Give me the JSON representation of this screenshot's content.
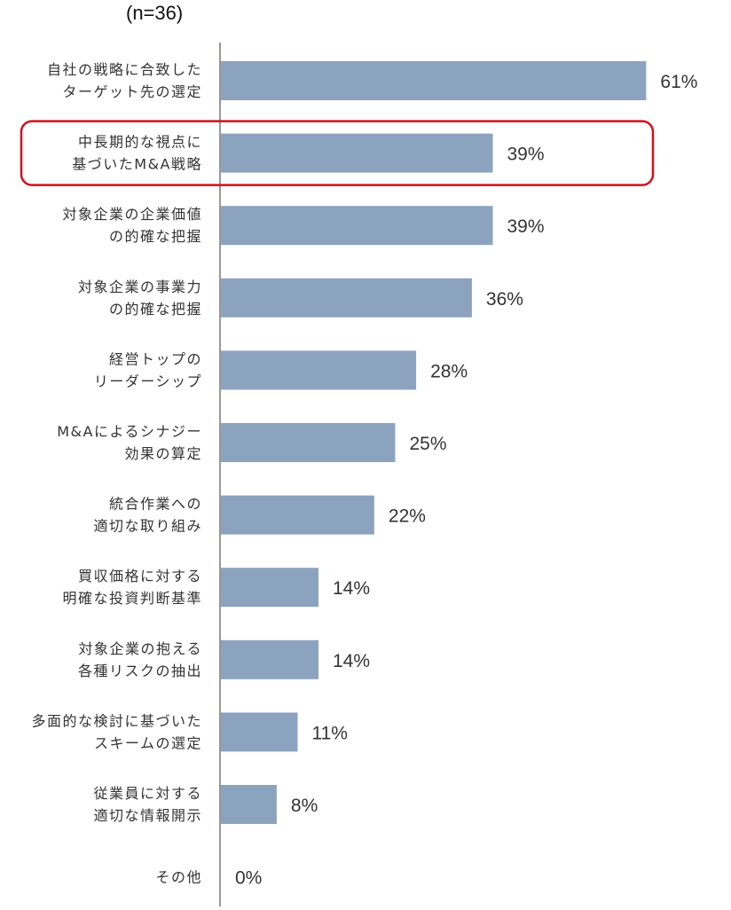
{
  "chart_data": {
    "type": "bar",
    "orientation": "horizontal",
    "subtitle": "(n=36)",
    "categories": [
      [
        "自社の戦略に合致した",
        "ターゲット先の選定"
      ],
      [
        "中長期的な視点に",
        "基づいたM&A戦略"
      ],
      [
        "対象企業の企業価値",
        "の的確な把握"
      ],
      [
        "対象企業の事業力",
        "の的確な把握"
      ],
      [
        "経営トップの",
        "リーダーシップ"
      ],
      [
        "M&Aによるシナジー",
        "効果の算定"
      ],
      [
        "統合作業への",
        "適切な取り組み"
      ],
      [
        "買収価格に対する",
        "明確な投資判断基準"
      ],
      [
        "対象企業の抱える",
        "各種リスクの抽出"
      ],
      [
        "多面的な検討に基づいた",
        "スキームの選定"
      ],
      [
        "従業員に対する",
        "適切な情報開示"
      ],
      [
        "その他"
      ]
    ],
    "values": [
      61,
      39,
      39,
      36,
      28,
      25,
      22,
      14,
      14,
      11,
      8,
      0
    ],
    "value_labels": [
      "61%",
      "39%",
      "39%",
      "36%",
      "28%",
      "25%",
      "22%",
      "14%",
      "14%",
      "11%",
      "8%",
      "0%"
    ],
    "highlighted_index": 1,
    "xlim": [
      0,
      64
    ],
    "grid": false,
    "colors": {
      "bar": "#8ca3bf",
      "highlight_box": "#d0111b",
      "axis": "#777777",
      "text": "#333333"
    }
  }
}
